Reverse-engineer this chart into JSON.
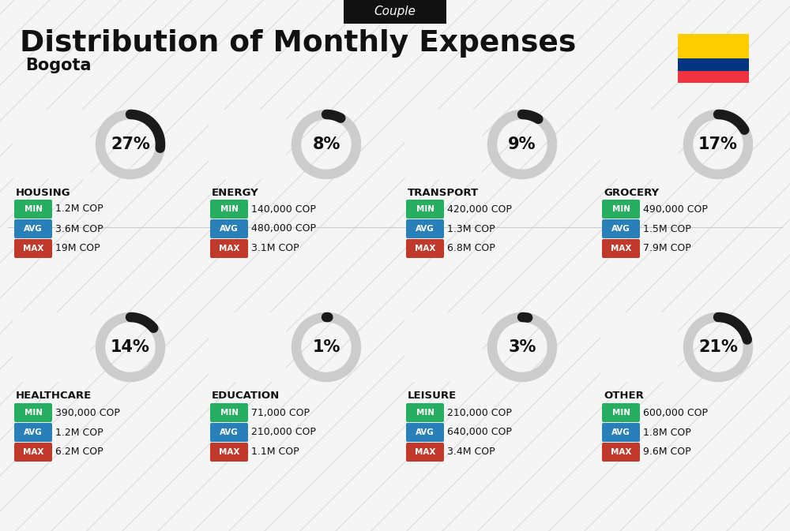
{
  "title": "Distribution of Monthly Expenses",
  "subtitle": "Bogota",
  "header_label": "Couple",
  "bg_color": "#f5f5f5",
  "categories": [
    {
      "name": "HOUSING",
      "pct": 27,
      "min": "1.2M COP",
      "avg": "3.6M COP",
      "max": "19M COP",
      "row": 0,
      "col": 0
    },
    {
      "name": "ENERGY",
      "pct": 8,
      "min": "140,000 COP",
      "avg": "480,000 COP",
      "max": "3.1M COP",
      "row": 0,
      "col": 1
    },
    {
      "name": "TRANSPORT",
      "pct": 9,
      "min": "420,000 COP",
      "avg": "1.3M COP",
      "max": "6.8M COP",
      "row": 0,
      "col": 2
    },
    {
      "name": "GROCERY",
      "pct": 17,
      "min": "490,000 COP",
      "avg": "1.5M COP",
      "max": "7.9M COP",
      "row": 0,
      "col": 3
    },
    {
      "name": "HEALTHCARE",
      "pct": 14,
      "min": "390,000 COP",
      "avg": "1.2M COP",
      "max": "6.2M COP",
      "row": 1,
      "col": 0
    },
    {
      "name": "EDUCATION",
      "pct": 1,
      "min": "71,000 COP",
      "avg": "210,000 COP",
      "max": "1.1M COP",
      "row": 1,
      "col": 1
    },
    {
      "name": "LEISURE",
      "pct": 3,
      "min": "210,000 COP",
      "avg": "640,000 COP",
      "max": "3.4M COP",
      "row": 1,
      "col": 2
    },
    {
      "name": "OTHER",
      "pct": 21,
      "min": "600,000 COP",
      "avg": "1.8M COP",
      "max": "9.6M COP",
      "row": 1,
      "col": 3
    }
  ],
  "color_min": "#27ae60",
  "color_avg": "#2980b9",
  "color_max": "#c0392b",
  "donut_filled": "#1a1a1a",
  "donut_empty": "#cccccc",
  "colombia_colors": [
    "#FFCD00",
    "#003580",
    "#EF3340"
  ],
  "label_bg": "#111111",
  "label_fg": "#ffffff",
  "diag_color": "#e0e0e0",
  "divider_color": "#cccccc"
}
